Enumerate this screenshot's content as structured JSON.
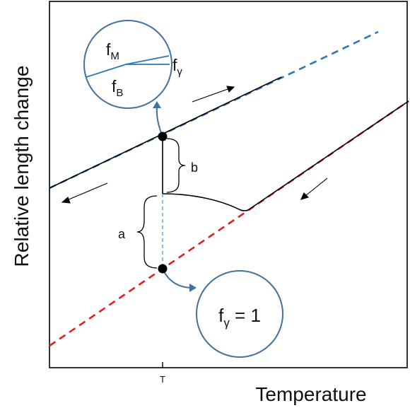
{
  "axes": {
    "xlabel": "Temperature",
    "ylabel": "Relative length change",
    "x_tick": "T"
  },
  "annotations": {
    "a_label": "a",
    "b_label": "b"
  },
  "inset_top": {
    "f_m": "f",
    "f_m_sub": "M",
    "f_b": "f",
    "f_b_sub": "B",
    "f_gamma": "f",
    "f_gamma_sub": "γ"
  },
  "inset_bottom": {
    "f": "f",
    "sub": "γ",
    "equals": " = 1"
  },
  "colors": {
    "upper_line": "#000000",
    "upper_dashed": "#2e75b6",
    "lower_dashed": "#e02020",
    "inset_circle": "#41719c",
    "marker": "#000000"
  }
}
